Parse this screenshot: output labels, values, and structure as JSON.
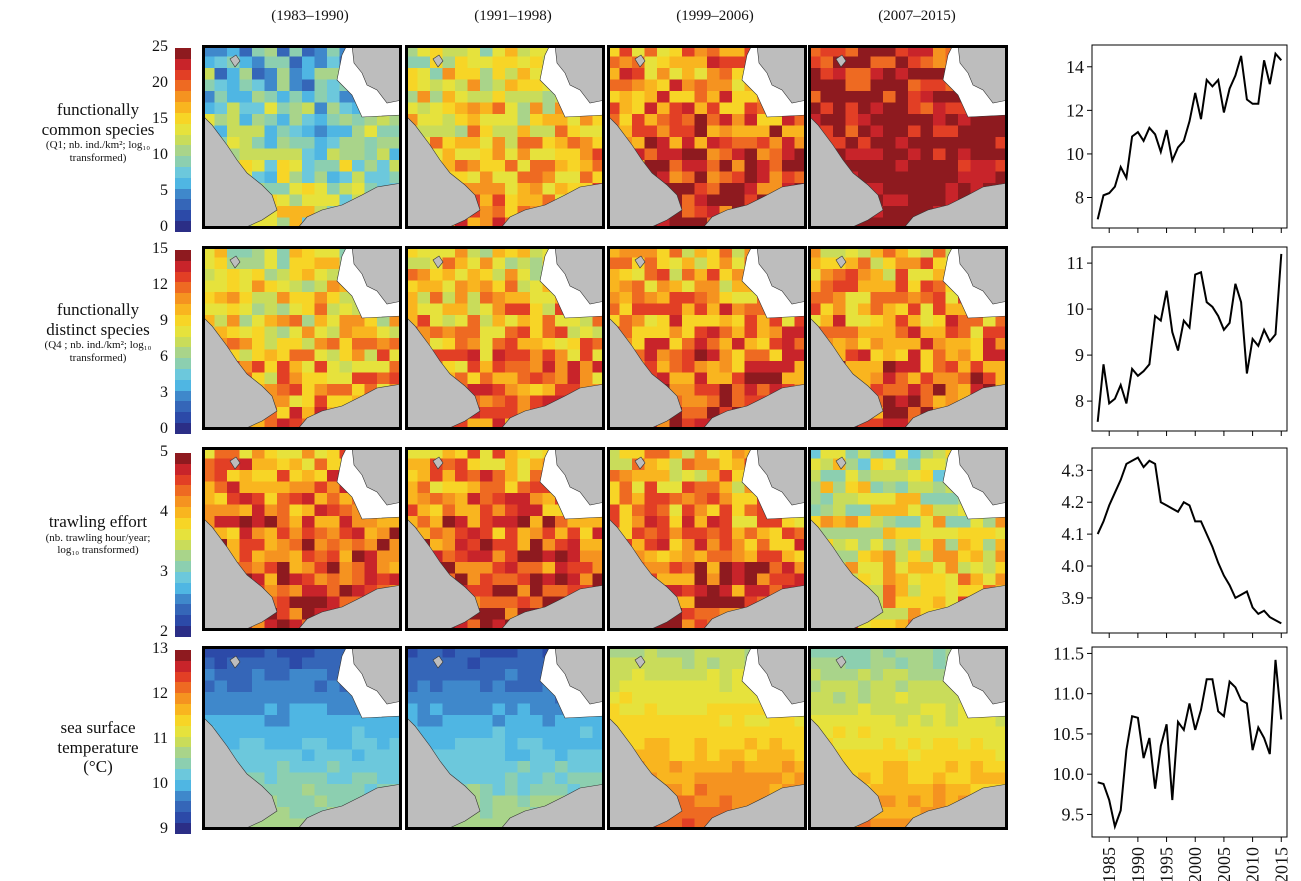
{
  "periods": [
    "(1983–1990)",
    "(1991–1998)",
    "(1999–2006)",
    "(2007–2015)"
  ],
  "rows": [
    {
      "label_lines": [
        "functionally",
        "common species"
      ],
      "sub_lines": [
        "(Q1; nb. ind./km²; log₁₀",
        "transformed)"
      ],
      "colorbar_ticks": [
        "25",
        "20",
        "15",
        "10",
        "5",
        "0"
      ],
      "levels": [
        6,
        10,
        13,
        16
      ]
    },
    {
      "label_lines": [
        "functionally",
        "distinct species"
      ],
      "sub_lines": [
        "(Q4 ; nb. ind./km²; log₁₀",
        "transformed)"
      ],
      "colorbar_ticks": [
        "15",
        "12",
        "9",
        "6",
        "3",
        "0"
      ],
      "levels": [
        10,
        11,
        12,
        12
      ]
    },
    {
      "label_lines": [
        "trawling effort"
      ],
      "sub_lines": [
        "(nb. trawling hour/year;",
        "log₁₀ transformed)"
      ],
      "colorbar_ticks": [
        "5",
        "4",
        "3",
        "2"
      ],
      "levels": [
        13,
        13,
        12,
        9
      ]
    },
    {
      "label_lines": [
        "sea surface",
        "temperature",
        "(°C)"
      ],
      "sub_lines": [],
      "colorbar_ticks": [
        "13",
        "12",
        "11",
        "10",
        "9"
      ],
      "levels": [
        3,
        3,
        9,
        8
      ]
    }
  ],
  "colors": {
    "scale": [
      "#2b2e86",
      "#2c4aa8",
      "#3566b8",
      "#3f88cb",
      "#4fb6e3",
      "#6cc8dc",
      "#8ccfb0",
      "#a9d48a",
      "#c9dc5a",
      "#e6e23c",
      "#f7d526",
      "#f9b51f",
      "#f59320",
      "#ee6a22",
      "#e23f25",
      "#c8242a",
      "#8e1a1f"
    ],
    "land": "#bdbdbd",
    "frame": "#000000",
    "line": "#000000"
  },
  "chart_data": [
    {
      "type": "line",
      "series": [
        {
          "values": [
            7.0,
            8.1,
            8.2,
            8.5,
            9.4,
            8.9,
            10.8,
            11.0,
            10.6,
            11.2,
            10.9,
            10.1,
            11.1,
            9.7,
            10.3,
            10.6,
            11.5,
            12.8,
            11.6,
            13.4,
            13.1,
            13.4,
            11.9,
            13.0,
            13.6,
            14.5,
            12.5,
            12.3,
            12.3,
            14.3,
            13.2,
            14.6,
            14.3
          ]
        }
      ],
      "x": [
        1983,
        1984,
        1985,
        1986,
        1987,
        1988,
        1989,
        1990,
        1991,
        1992,
        1993,
        1994,
        1995,
        1996,
        1997,
        1998,
        1999,
        2000,
        2001,
        2002,
        2003,
        2004,
        2005,
        2006,
        2007,
        2008,
        2009,
        2010,
        2011,
        2012,
        2013,
        2014,
        2015
      ],
      "yticks": [
        "8",
        "10",
        "12",
        "14"
      ],
      "ylim": [
        6.6,
        15.0
      ]
    },
    {
      "type": "line",
      "series": [
        {
          "values": [
            7.55,
            8.8,
            7.95,
            8.05,
            8.35,
            7.95,
            8.7,
            8.55,
            8.65,
            8.8,
            9.85,
            9.75,
            10.4,
            9.5,
            9.1,
            9.75,
            9.6,
            10.75,
            10.8,
            10.15,
            10.05,
            9.85,
            9.55,
            9.7,
            10.55,
            10.15,
            8.6,
            9.35,
            9.2,
            9.55,
            9.3,
            9.45,
            11.2
          ]
        }
      ],
      "x": [
        1983,
        1984,
        1985,
        1986,
        1987,
        1988,
        1989,
        1990,
        1991,
        1992,
        1993,
        1994,
        1995,
        1996,
        1997,
        1998,
        1999,
        2000,
        2001,
        2002,
        2003,
        2004,
        2005,
        2006,
        2007,
        2008,
        2009,
        2010,
        2011,
        2012,
        2013,
        2014,
        2015
      ],
      "yticks": [
        "8",
        "9",
        "10",
        "11"
      ],
      "ylim": [
        7.35,
        11.35
      ]
    },
    {
      "type": "line",
      "series": [
        {
          "values": [
            4.1,
            4.14,
            4.19,
            4.23,
            4.27,
            4.32,
            4.33,
            4.34,
            4.31,
            4.33,
            4.32,
            4.2,
            4.19,
            4.18,
            4.17,
            4.2,
            4.19,
            4.14,
            4.14,
            4.1,
            4.06,
            4.01,
            3.97,
            3.94,
            3.9,
            3.91,
            3.92,
            3.87,
            3.85,
            3.86,
            3.84,
            3.83,
            3.82
          ]
        }
      ],
      "x": [
        1983,
        1984,
        1985,
        1986,
        1987,
        1988,
        1989,
        1990,
        1991,
        1992,
        1993,
        1994,
        1995,
        1996,
        1997,
        1998,
        1999,
        2000,
        2001,
        2002,
        2003,
        2004,
        2005,
        2006,
        2007,
        2008,
        2009,
        2010,
        2011,
        2012,
        2013,
        2014,
        2015
      ],
      "yticks": [
        "3.9",
        "4.0",
        "4.1",
        "4.2",
        "4.3"
      ],
      "ylim": [
        3.79,
        4.37
      ]
    },
    {
      "type": "line",
      "series": [
        {
          "values": [
            9.9,
            9.88,
            9.68,
            9.35,
            9.55,
            10.3,
            10.72,
            10.7,
            10.2,
            10.45,
            9.82,
            10.35,
            10.62,
            9.68,
            10.65,
            10.55,
            10.88,
            10.55,
            10.8,
            11.18,
            11.18,
            10.78,
            10.72,
            11.15,
            11.08,
            10.92,
            10.88,
            10.3,
            10.58,
            10.45,
            10.25,
            11.42,
            10.68
          ]
        }
      ],
      "x": [
        1983,
        1984,
        1985,
        1986,
        1987,
        1988,
        1989,
        1990,
        1991,
        1992,
        1993,
        1994,
        1995,
        1996,
        1997,
        1998,
        1999,
        2000,
        2001,
        2002,
        2003,
        2004,
        2005,
        2006,
        2007,
        2008,
        2009,
        2010,
        2011,
        2012,
        2013,
        2014,
        2015
      ],
      "yticks": [
        "9.5",
        "10.0",
        "10.5",
        "11.0",
        "11.5"
      ],
      "ylim": [
        9.22,
        11.58
      ],
      "xticks": [
        "1985",
        "1990",
        "1995",
        "2000",
        "2005",
        "2010",
        "2015"
      ]
    }
  ]
}
